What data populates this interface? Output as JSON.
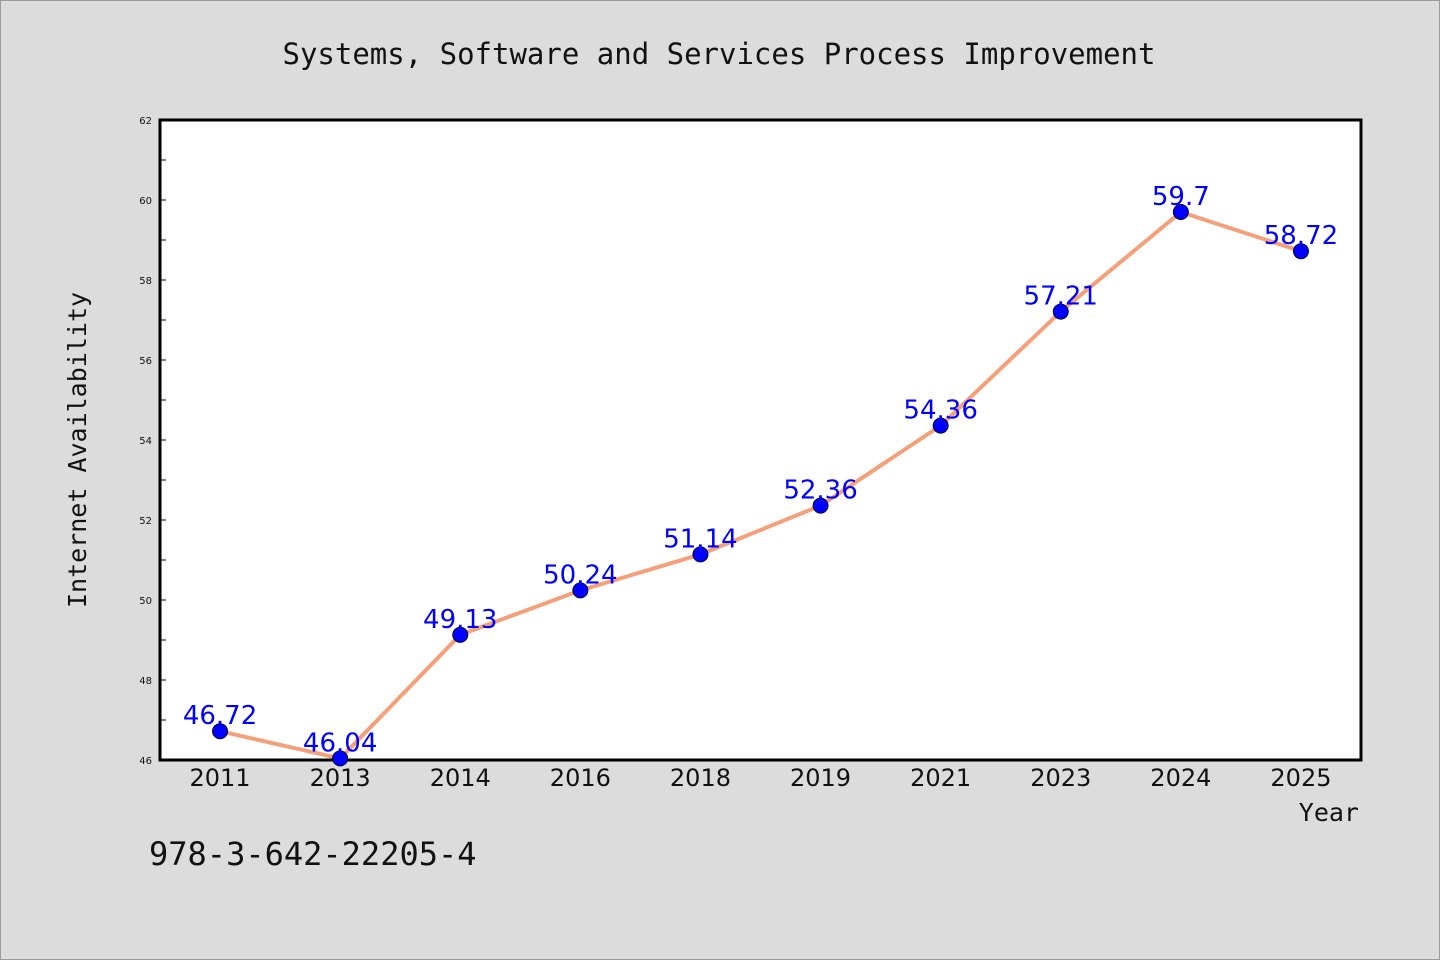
{
  "chart_data": {
    "type": "line",
    "title": "Systems, Software and Services Process Improvement",
    "xlabel": "Year",
    "ylabel": "Internet Availability",
    "categories": [
      "2011",
      "2013",
      "2014",
      "2016",
      "2018",
      "2019",
      "2021",
      "2023",
      "2024",
      "2025"
    ],
    "values": [
      46.72,
      46.04,
      49.13,
      50.24,
      51.14,
      52.36,
      54.36,
      57.21,
      59.7,
      58.72
    ],
    "data_labels": [
      "46.72",
      "46.04",
      "49.13",
      "50.24",
      "51.14",
      "52.36",
      "54.36",
      "57.21",
      "59.7",
      "58.72"
    ],
    "ylim": [
      46,
      62
    ],
    "yticks": [
      46,
      48,
      50,
      52,
      54,
      56,
      58,
      60,
      62
    ],
    "grid": false,
    "legend": "none",
    "line_color": "#f4a07a",
    "marker_color": "#0000ff",
    "label_color": "#0000ff"
  },
  "caption": "978-3-642-22205-4"
}
